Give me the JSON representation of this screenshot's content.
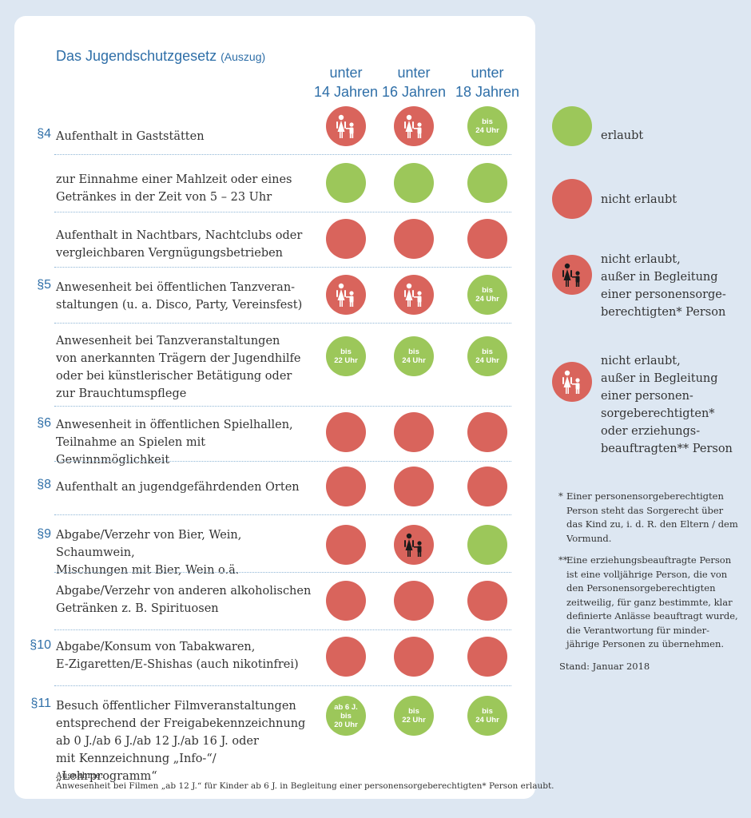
{
  "title": "Das Jugendschutzgesetz",
  "title_sub": "(Auszug)",
  "columns": [
    {
      "l1": "unter",
      "l2": "14 Jahren"
    },
    {
      "l1": "unter",
      "l2": "16 Jahren"
    },
    {
      "l1": "unter",
      "l2": "18 Jahren"
    }
  ],
  "rows": [
    {
      "para": "§4",
      "lines": [
        "Aufenthalt in Gaststätten"
      ],
      "cells": [
        {
          "status": "nicht erlaubt, außer in Begleitung einer personensorgeberechtigten oder erziehungsbeauftragten Person",
          "icon": "adult-child-white-icon"
        },
        {
          "status": "nicht erlaubt, außer in Begleitung einer personensorgeberechtigten oder erziehungsbeauftragten Person",
          "icon": "adult-child-white-icon"
        },
        {
          "status": "erlaubt",
          "label": [
            "bis",
            "24 Uhr"
          ]
        }
      ]
    },
    {
      "para": "",
      "lines": [
        "zur Einnahme einer Mahlzeit oder eines",
        "Getränkes in der Zeit von 5 – 23 Uhr"
      ],
      "cells": [
        {
          "status": "erlaubt"
        },
        {
          "status": "erlaubt"
        },
        {
          "status": "erlaubt"
        }
      ]
    },
    {
      "para": "",
      "lines": [
        "Aufenthalt in Nachtbars, Nachtclubs oder",
        "vergleichbaren Vergnügungsbetrieben"
      ],
      "cells": [
        {
          "status": "nicht erlaubt"
        },
        {
          "status": "nicht erlaubt"
        },
        {
          "status": "nicht erlaubt"
        }
      ]
    },
    {
      "para": "§5",
      "lines": [
        "Anwesenheit bei öffentlichen Tanzveran-",
        "staltungen (u. a. Disco, Party, Vereinsfest)"
      ],
      "cells": [
        {
          "status": "nicht erlaubt, außer in Begleitung einer personensorgeberechtigten oder erziehungsbeauftragten Person",
          "icon": "adult-child-white-icon"
        },
        {
          "status": "nicht erlaubt, außer in Begleitung einer personensorgeberechtigten oder erziehungsbeauftragten Person",
          "icon": "adult-child-white-icon"
        },
        {
          "status": "erlaubt",
          "label": [
            "bis",
            "24 Uhr"
          ]
        }
      ]
    },
    {
      "para": "",
      "lines": [
        "Anwesenheit bei Tanzveranstaltungen",
        "von anerkannten Trägern der Jugendhilfe",
        "oder bei künstlerischer Betätigung oder",
        "zur Brauchtumspflege"
      ],
      "cells": [
        {
          "status": "erlaubt",
          "label": [
            "bis",
            "22 Uhr"
          ]
        },
        {
          "status": "erlaubt",
          "label": [
            "bis",
            "24 Uhr"
          ]
        },
        {
          "status": "erlaubt",
          "label": [
            "bis",
            "24 Uhr"
          ]
        }
      ]
    },
    {
      "para": "§6",
      "lines": [
        "Anwesenheit in öffentlichen Spielhallen,",
        "Teilnahme an Spielen mit Gewinnmöglichkeit"
      ],
      "cells": [
        {
          "status": "nicht erlaubt"
        },
        {
          "status": "nicht erlaubt"
        },
        {
          "status": "nicht erlaubt"
        }
      ]
    },
    {
      "para": "§8",
      "lines": [
        "Aufenthalt an jugendgefährdenden Orten"
      ],
      "cells": [
        {
          "status": "nicht erlaubt"
        },
        {
          "status": "nicht erlaubt"
        },
        {
          "status": "nicht erlaubt"
        }
      ]
    },
    {
      "para": "§9",
      "lines": [
        "Abgabe/Verzehr von Bier, Wein, Schaumwein,",
        "Mischungen mit Bier, Wein o.ä."
      ],
      "cells": [
        {
          "status": "nicht erlaubt"
        },
        {
          "status": "nicht erlaubt, außer in Begleitung einer personensorgeberechtigten Person",
          "icon": "adult-child-black-icon"
        },
        {
          "status": "erlaubt"
        }
      ]
    },
    {
      "para": "",
      "lines": [
        "Abgabe/Verzehr von anderen alkoholischen",
        "Getränken  z. B. Spirituosen"
      ],
      "cells": [
        {
          "status": "nicht erlaubt"
        },
        {
          "status": "nicht erlaubt"
        },
        {
          "status": "nicht erlaubt"
        }
      ]
    },
    {
      "para": "§10",
      "lines": [
        "Abgabe/Konsum von Tabakwaren,",
        "E-Zigaretten/E-Shishas (auch nikotinfrei)"
      ],
      "cells": [
        {
          "status": "nicht erlaubt"
        },
        {
          "status": "nicht erlaubt"
        },
        {
          "status": "nicht erlaubt"
        }
      ]
    },
    {
      "para": "§11",
      "lines": [
        "Besuch öffentlicher Filmveranstaltungen",
        "entsprechend der Freigabekennzeichnung",
        "ab 0 J./ab 6 J./ab 12 J./ab 16 J. oder",
        "mit Kennzeichnung „Info-“/„Lehrprogramm“"
      ],
      "cells": [
        {
          "status": "erlaubt",
          "label": [
            "ab 6 J.",
            "bis",
            "20 Uhr"
          ]
        },
        {
          "status": "erlaubt",
          "label": [
            "bis",
            "22 Uhr"
          ]
        },
        {
          "status": "erlaubt",
          "label": [
            "bis",
            "24 Uhr"
          ]
        }
      ]
    }
  ],
  "note": {
    "heading": "Ausnahme:",
    "text": "Anwesenheit bei Filmen „ab 12 J.“ für Kinder ab 6 J. in Begleitung einer personensorgeberechtigten* Person erlaubt."
  },
  "legend": [
    {
      "kind": "green",
      "lines": [
        "erlaubt"
      ]
    },
    {
      "kind": "red",
      "lines": [
        "nicht erlaubt"
      ]
    },
    {
      "kind": "redk",
      "icon": "adult-child-black-icon",
      "lines": [
        "nicht erlaubt,",
        "außer in Begleitung",
        "einer personensorge-",
        "berechtigten* Person"
      ]
    },
    {
      "kind": "red",
      "icon": "adult-child-white-icon",
      "lines": [
        "nicht erlaubt,",
        "außer in Begleitung",
        "einer personen-",
        "sorgeberechtigten*",
        "oder erziehungs-",
        "beauftragten** Person"
      ]
    }
  ],
  "footnotes": [
    {
      "mark": "*",
      "lines": [
        "Einer personensorgeberechtigten",
        "Person steht das Sorgerecht über",
        "das Kind zu, i. d. R. den Eltern / dem",
        "Vormund."
      ]
    },
    {
      "mark": "**",
      "lines": [
        "Eine erziehungsbeauftragte Person",
        "ist eine volljährige Person, die von",
        "den Personensorgeberechtigten",
        "zeitweilig, für ganz bestimmte, klar",
        "definierte Anlässe beauftragt wurde,",
        "die Verantwortung für minder-",
        "jährige Personen zu übernehmen."
      ]
    }
  ],
  "stand": "Stand: Januar 2018",
  "colors": {
    "green": "#9cc75a",
    "red": "#d9645c",
    "blue": "#2f6fa8",
    "background": "#dde7f2"
  }
}
